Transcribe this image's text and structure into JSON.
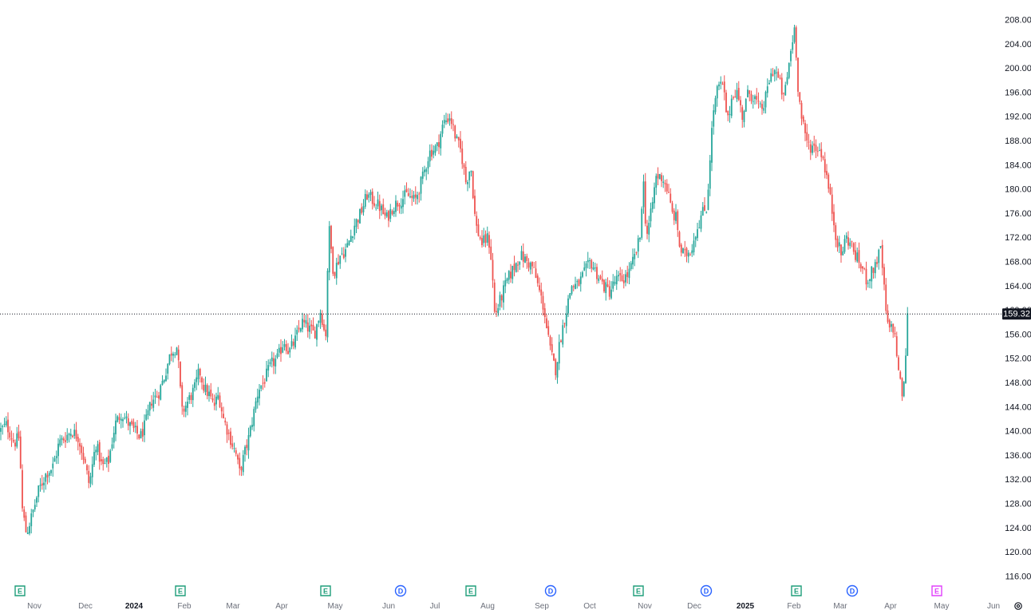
{
  "chart_data": {
    "type": "candlestick",
    "ylim": [
      114,
      210
    ],
    "y_ticks": [
      "208.00",
      "204.00",
      "200.00",
      "196.00",
      "192.00",
      "188.00",
      "184.00",
      "180.00",
      "176.00",
      "172.00",
      "168.00",
      "164.00",
      "160.00",
      "156.00",
      "152.00",
      "148.00",
      "144.00",
      "140.00",
      "136.00",
      "132.00",
      "128.00",
      "124.00",
      "120.00",
      "116.00"
    ],
    "x_ticks": [
      {
        "label": "Nov",
        "bold": false
      },
      {
        "label": "Dec",
        "bold": false
      },
      {
        "label": "2024",
        "bold": true
      },
      {
        "label": "Feb",
        "bold": false
      },
      {
        "label": "Mar",
        "bold": false
      },
      {
        "label": "Apr",
        "bold": false
      },
      {
        "label": "May",
        "bold": false
      },
      {
        "label": "Jun",
        "bold": false
      },
      {
        "label": "Jul",
        "bold": false
      },
      {
        "label": "Aug",
        "bold": false
      },
      {
        "label": "Sep",
        "bold": false
      },
      {
        "label": "Oct",
        "bold": false
      },
      {
        "label": "Nov",
        "bold": false
      },
      {
        "label": "Dec",
        "bold": false
      },
      {
        "label": "2025",
        "bold": true
      },
      {
        "label": "Feb",
        "bold": false
      },
      {
        "label": "Mar",
        "bold": false
      },
      {
        "label": "Apr",
        "bold": false
      },
      {
        "label": "May",
        "bold": false
      },
      {
        "label": "Jun",
        "bold": false
      }
    ],
    "events": [
      {
        "label": "E",
        "kind": "earnings",
        "month": "Oct"
      },
      {
        "label": "E",
        "kind": "earnings",
        "month": "Jan"
      },
      {
        "label": "E",
        "kind": "earnings",
        "month": "Apr"
      },
      {
        "label": "D",
        "kind": "dividend",
        "month": "May"
      },
      {
        "label": "E",
        "kind": "earnings",
        "month": "Jul"
      },
      {
        "label": "D",
        "kind": "dividend",
        "month": "Aug"
      },
      {
        "label": "E",
        "kind": "earnings",
        "month": "Oct"
      },
      {
        "label": "D",
        "kind": "dividend",
        "month": "Nov"
      },
      {
        "label": "E",
        "kind": "earnings",
        "month": "Jan"
      },
      {
        "label": "D",
        "kind": "dividend",
        "month": "Feb"
      },
      {
        "label": "E",
        "kind": "upcoming-earnings",
        "month": "Apr"
      }
    ],
    "last_price": 159.32,
    "last_price_label": "159.32",
    "close_path": [
      [
        0,
        140
      ],
      [
        8,
        141
      ],
      [
        18,
        138
      ],
      [
        24,
        139
      ],
      [
        28,
        127
      ],
      [
        33,
        123
      ],
      [
        40,
        126
      ],
      [
        48,
        130
      ],
      [
        58,
        133
      ],
      [
        66,
        134
      ],
      [
        74,
        138
      ],
      [
        82,
        139
      ],
      [
        90,
        140
      ],
      [
        98,
        139
      ],
      [
        104,
        136
      ],
      [
        112,
        131
      ],
      [
        120,
        138
      ],
      [
        128,
        134
      ],
      [
        136,
        135
      ],
      [
        144,
        141
      ],
      [
        152,
        143
      ],
      [
        162,
        141
      ],
      [
        168,
        140
      ],
      [
        176,
        139
      ],
      [
        182,
        141
      ],
      [
        190,
        145
      ],
      [
        198,
        146
      ],
      [
        206,
        149
      ],
      [
        214,
        153
      ],
      [
        222,
        154
      ],
      [
        228,
        143
      ],
      [
        236,
        145
      ],
      [
        244,
        147
      ],
      [
        250,
        150
      ],
      [
        256,
        147
      ],
      [
        262,
        146
      ],
      [
        268,
        144
      ],
      [
        274,
        146
      ],
      [
        280,
        142
      ],
      [
        288,
        139
      ],
      [
        296,
        136
      ],
      [
        300,
        133
      ],
      [
        306,
        136
      ],
      [
        312,
        139
      ],
      [
        318,
        143
      ],
      [
        324,
        147
      ],
      [
        330,
        148
      ],
      [
        340,
        151
      ],
      [
        348,
        152
      ],
      [
        356,
        155
      ],
      [
        362,
        153
      ],
      [
        370,
        155
      ],
      [
        378,
        158
      ],
      [
        386,
        157
      ],
      [
        394,
        156
      ],
      [
        402,
        160
      ],
      [
        408,
        155
      ],
      [
        412,
        174
      ],
      [
        418,
        166
      ],
      [
        426,
        169
      ],
      [
        434,
        170
      ],
      [
        444,
        174
      ],
      [
        452,
        176
      ],
      [
        460,
        179
      ],
      [
        468,
        178
      ],
      [
        476,
        177
      ],
      [
        484,
        175
      ],
      [
        492,
        177
      ],
      [
        500,
        178
      ],
      [
        510,
        179
      ],
      [
        520,
        178
      ],
      [
        530,
        182
      ],
      [
        538,
        186
      ],
      [
        548,
        187
      ],
      [
        556,
        191
      ],
      [
        564,
        192
      ],
      [
        572,
        188
      ],
      [
        578,
        186
      ],
      [
        584,
        181
      ],
      [
        590,
        184
      ],
      [
        596,
        174
      ],
      [
        604,
        171
      ],
      [
        612,
        172
      ],
      [
        616,
        168
      ],
      [
        620,
        159
      ],
      [
        628,
        162
      ],
      [
        636,
        165
      ],
      [
        644,
        167
      ],
      [
        652,
        169
      ],
      [
        660,
        168
      ],
      [
        668,
        167
      ],
      [
        676,
        163
      ],
      [
        682,
        160
      ],
      [
        686,
        156
      ],
      [
        690,
        153
      ],
      [
        696,
        150
      ],
      [
        702,
        155
      ],
      [
        708,
        159
      ],
      [
        716,
        164
      ],
      [
        724,
        164
      ],
      [
        732,
        166
      ],
      [
        740,
        168
      ],
      [
        748,
        166
      ],
      [
        756,
        164
      ],
      [
        764,
        163
      ],
      [
        772,
        165
      ],
      [
        780,
        165
      ],
      [
        788,
        166
      ],
      [
        796,
        169
      ],
      [
        802,
        172
      ],
      [
        806,
        182
      ],
      [
        810,
        172
      ],
      [
        816,
        176
      ],
      [
        822,
        182
      ],
      [
        830,
        182
      ],
      [
        836,
        180
      ],
      [
        842,
        176
      ],
      [
        848,
        175
      ],
      [
        852,
        170
      ],
      [
        858,
        169
      ],
      [
        866,
        170
      ],
      [
        872,
        173
      ],
      [
        880,
        176
      ],
      [
        886,
        177
      ],
      [
        890,
        186
      ],
      [
        894,
        193
      ],
      [
        900,
        197
      ],
      [
        906,
        197
      ],
      [
        912,
        191
      ],
      [
        918,
        196
      ],
      [
        924,
        196
      ],
      [
        930,
        192
      ],
      [
        938,
        196
      ],
      [
        946,
        195
      ],
      [
        952,
        193
      ],
      [
        958,
        194
      ],
      [
        964,
        198
      ],
      [
        970,
        200
      ],
      [
        976,
        198
      ],
      [
        982,
        195
      ],
      [
        986,
        198
      ],
      [
        990,
        202
      ],
      [
        996,
        207
      ],
      [
        1000,
        197
      ],
      [
        1004,
        192
      ],
      [
        1010,
        188
      ],
      [
        1016,
        187
      ],
      [
        1022,
        187
      ],
      [
        1030,
        186
      ],
      [
        1036,
        182
      ],
      [
        1042,
        177
      ],
      [
        1048,
        172
      ],
      [
        1054,
        169
      ],
      [
        1060,
        172
      ],
      [
        1066,
        171
      ],
      [
        1072,
        169
      ],
      [
        1080,
        167
      ],
      [
        1086,
        165
      ],
      [
        1092,
        166
      ],
      [
        1098,
        168
      ],
      [
        1104,
        170
      ],
      [
        1110,
        160
      ],
      [
        1114,
        156
      ],
      [
        1118,
        158
      ],
      [
        1122,
        155
      ],
      [
        1126,
        150
      ],
      [
        1130,
        146
      ],
      [
        1134,
        148
      ],
      [
        1136,
        158
      ],
      [
        1138,
        159.3
      ]
    ]
  }
}
